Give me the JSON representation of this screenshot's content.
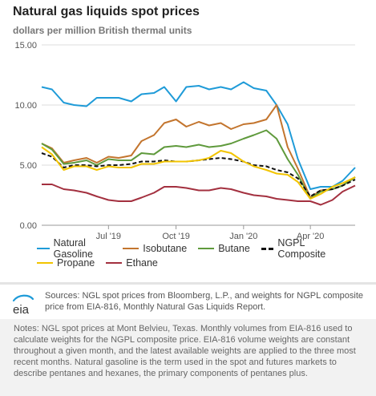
{
  "chart_data": {
    "type": "line",
    "title": "Natural gas liquids spot prices",
    "subtitle": "dollars per million British thermal units",
    "xlabel": "",
    "ylabel": "",
    "x_range": [
      "2019-04-01",
      "2020-06-01"
    ],
    "ylim": [
      0,
      15
    ],
    "y_ticks": [
      "0.00",
      "5.00",
      "10.00",
      "15.00"
    ],
    "x_ticks": [
      {
        "label": "Jul '19",
        "date": "2019-07-01"
      },
      {
        "label": "Oct '19",
        "date": "2019-10-01"
      },
      {
        "label": "Jan '20",
        "date": "2020-01-01"
      },
      {
        "label": "Apr '20",
        "date": "2020-04-01"
      }
    ],
    "grid": true,
    "legend_position": "bottom",
    "x": [
      "2019-04-01",
      "2019-04-15",
      "2019-05-01",
      "2019-05-15",
      "2019-06-01",
      "2019-06-15",
      "2019-07-01",
      "2019-07-15",
      "2019-08-01",
      "2019-08-15",
      "2019-09-01",
      "2019-09-15",
      "2019-10-01",
      "2019-10-15",
      "2019-11-01",
      "2019-11-15",
      "2019-12-01",
      "2019-12-15",
      "2020-01-01",
      "2020-01-15",
      "2020-02-01",
      "2020-02-15",
      "2020-03-01",
      "2020-03-15",
      "2020-04-01",
      "2020-04-15",
      "2020-05-01",
      "2020-05-15",
      "2020-06-01"
    ],
    "series": [
      {
        "name": "Natural Gasoline",
        "color": "#1f9bd8",
        "dash": false,
        "values": [
          11.5,
          11.3,
          10.2,
          10.0,
          9.9,
          10.6,
          10.6,
          10.6,
          10.3,
          10.9,
          11.0,
          11.5,
          10.3,
          11.5,
          11.6,
          11.3,
          11.5,
          11.3,
          11.9,
          11.4,
          11.2,
          10.0,
          8.4,
          5.5,
          3.0,
          3.2,
          3.2,
          3.7,
          4.8
        ]
      },
      {
        "name": "Isobutane",
        "color": "#c3752e",
        "dash": false,
        "values": [
          6.8,
          6.4,
          5.2,
          5.4,
          5.6,
          5.2,
          5.7,
          5.6,
          5.8,
          7.0,
          7.5,
          8.5,
          8.8,
          8.2,
          8.6,
          8.3,
          8.5,
          8.0,
          8.4,
          8.5,
          8.8,
          10.0,
          6.5,
          4.7,
          2.3,
          2.9,
          3.0,
          3.3,
          4.0
        ]
      },
      {
        "name": "Butane",
        "color": "#5f9a3c",
        "dash": false,
        "values": [
          6.8,
          6.3,
          5.1,
          5.2,
          5.4,
          5.0,
          5.5,
          5.4,
          5.4,
          6.0,
          5.9,
          6.5,
          6.6,
          6.5,
          6.7,
          6.5,
          6.6,
          6.8,
          7.2,
          7.5,
          7.9,
          7.2,
          5.5,
          4.2,
          2.2,
          2.8,
          3.0,
          3.3,
          4.0
        ]
      },
      {
        "name": "NGPL Composite",
        "color": "#111111",
        "dash": true,
        "values": [
          6.0,
          5.7,
          4.8,
          5.0,
          5.0,
          4.9,
          5.0,
          5.0,
          5.1,
          5.3,
          5.3,
          5.4,
          5.3,
          5.3,
          5.4,
          5.5,
          5.6,
          5.5,
          5.3,
          5.0,
          4.9,
          4.6,
          4.4,
          3.9,
          2.4,
          2.9,
          3.0,
          3.3,
          3.8
        ]
      },
      {
        "name": "Propane",
        "color": "#f2c400",
        "dash": false,
        "values": [
          6.5,
          5.9,
          4.6,
          4.9,
          4.9,
          4.6,
          4.9,
          4.8,
          4.8,
          5.1,
          5.1,
          5.3,
          5.3,
          5.3,
          5.4,
          5.6,
          6.2,
          6.0,
          5.3,
          4.9,
          4.6,
          4.3,
          4.2,
          3.6,
          2.2,
          2.6,
          3.2,
          3.5,
          4.0
        ]
      },
      {
        "name": "Ethane",
        "color": "#a3303f",
        "dash": false,
        "values": [
          3.4,
          3.4,
          3.0,
          2.9,
          2.7,
          2.4,
          2.1,
          2.0,
          2.0,
          2.3,
          2.7,
          3.2,
          3.2,
          3.1,
          2.9,
          2.9,
          3.1,
          3.0,
          2.7,
          2.5,
          2.4,
          2.2,
          2.1,
          2.0,
          2.0,
          1.7,
          2.1,
          2.8,
          3.3
        ]
      }
    ]
  },
  "sources": "Sources: NGL spot prices from Bloomberg, L.P., and weights for NGPL composite price from EIA-816, Monthly Natural Gas Liquids Report.",
  "notes": "Notes: NGL spot prices at Mont Belvieu, Texas. Monthly volumes from EIA-816 used to calculate weights for the NGPL composite price. EIA-816 volume weights are constant throughout a given month, and the latest available weights are applied to the three most recent months. Natural gasoline is the term used in the spot and futures markets to describe pentanes and hexanes, the primary components of pentanes plus.",
  "logo": {
    "text": "eia",
    "icon": "eia-logo-icon"
  }
}
